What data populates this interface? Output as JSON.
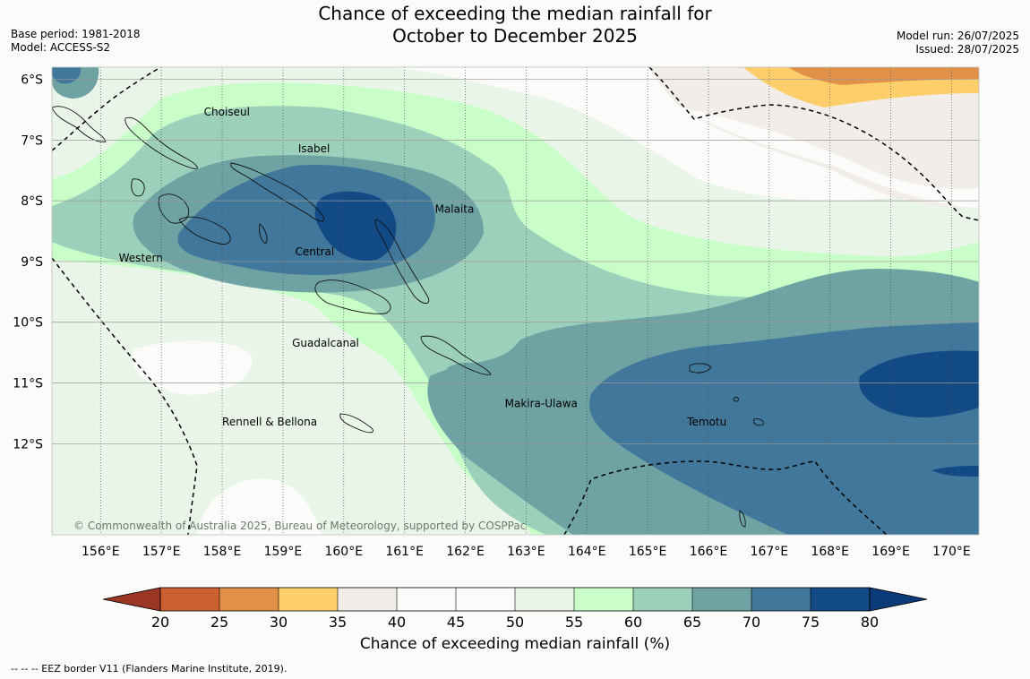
{
  "title": {
    "line1": "Chance of exceeding the median rainfall for",
    "line2": "October to December 2025"
  },
  "meta": {
    "base_period": "Base period: 1981-2018",
    "model": "Model: ACCESS-S2",
    "model_run": "Model run: 26/07/2025",
    "issued": "Issued: 28/07/2025"
  },
  "map": {
    "lon_ticks": [
      "156°E",
      "157°E",
      "158°E",
      "159°E",
      "160°E",
      "161°E",
      "162°E",
      "163°E",
      "164°E",
      "165°E",
      "166°E",
      "167°E",
      "168°E",
      "169°E",
      "170°E"
    ],
    "lat_ticks": [
      "6°S",
      "7°S",
      "8°S",
      "9°S",
      "10°S",
      "11°S",
      "12°S"
    ],
    "lon_range": [
      155.2,
      170.45
    ],
    "lat_range": [
      -13.5,
      -5.8
    ],
    "region_labels": [
      {
        "text": "Choiseul",
        "lon": 157.7,
        "lat": -6.6
      },
      {
        "text": "Isabel",
        "lon": 159.25,
        "lat": -7.2
      },
      {
        "text": "Malaita",
        "lon": 161.5,
        "lat": -8.2
      },
      {
        "text": "Western",
        "lon": 156.3,
        "lat": -9.0
      },
      {
        "text": "Central",
        "lon": 159.2,
        "lat": -8.9
      },
      {
        "text": "Guadalcanal",
        "lon": 159.15,
        "lat": -10.4
      },
      {
        "text": "Makira-Ulawa",
        "lon": 162.65,
        "lat": -11.4
      },
      {
        "text": "Temotu",
        "lon": 165.65,
        "lat": -11.7
      },
      {
        "text": "Rennell & Bellona",
        "lon": 158.0,
        "lat": -11.7
      }
    ],
    "copyright": "© Commonwealth of Australia 2025, Bureau of Meteorology, supported by COSPPac"
  },
  "colorbar": {
    "levels": [
      "20",
      "25",
      "30",
      "35",
      "40",
      "45",
      "50",
      "55",
      "60",
      "65",
      "70",
      "75",
      "80"
    ],
    "colors": [
      "#b2462a",
      "#cc6031",
      "#e09048",
      "#fdce6a",
      "#f2ede8",
      "#fbfcf9",
      "#fbfcf9",
      "#e9f5e8",
      "#c9fec9",
      "#9dd0bb",
      "#6fa3a3",
      "#40779b",
      "#124a86"
    ],
    "under_color": "#9b3524",
    "over_color": "#0b3b78",
    "label": "Chance of exceeding median rainfall (%)"
  },
  "footnote": "--  --  -- EEZ border V11 (Flanders Marine Institute, 2019)."
}
